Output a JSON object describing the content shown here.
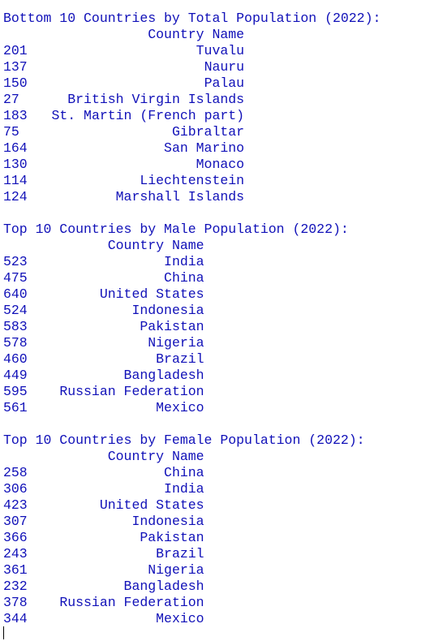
{
  "colors": {
    "background": "#ffffff",
    "text": "#1010b8",
    "cursor": "#000000"
  },
  "sections": [
    {
      "title": "Bottom 10 Countries by Total Population (2022):",
      "column_header": "Country Name",
      "index_width": 3,
      "value_width": 25,
      "rows": [
        {
          "index": "201",
          "value": "Tuvalu"
        },
        {
          "index": "137",
          "value": "Nauru"
        },
        {
          "index": "150",
          "value": "Palau"
        },
        {
          "index": "27",
          "value": "British Virgin Islands"
        },
        {
          "index": "183",
          "value": "St. Martin (French part)"
        },
        {
          "index": "75",
          "value": "Gibraltar"
        },
        {
          "index": "164",
          "value": "San Marino"
        },
        {
          "index": "130",
          "value": "Monaco"
        },
        {
          "index": "114",
          "value": "Liechtenstein"
        },
        {
          "index": "124",
          "value": "Marshall Islands"
        }
      ]
    },
    {
      "title": "Top 10 Countries by Male Population (2022):",
      "column_header": "Country Name",
      "index_width": 3,
      "value_width": 20,
      "rows": [
        {
          "index": "523",
          "value": "India"
        },
        {
          "index": "475",
          "value": "China"
        },
        {
          "index": "640",
          "value": "United States"
        },
        {
          "index": "524",
          "value": "Indonesia"
        },
        {
          "index": "583",
          "value": "Pakistan"
        },
        {
          "index": "578",
          "value": "Nigeria"
        },
        {
          "index": "460",
          "value": "Brazil"
        },
        {
          "index": "449",
          "value": "Bangladesh"
        },
        {
          "index": "595",
          "value": "Russian Federation"
        },
        {
          "index": "561",
          "value": "Mexico"
        }
      ]
    },
    {
      "title": "Top 10 Countries by Female Population (2022):",
      "column_header": "Country Name",
      "index_width": 3,
      "value_width": 20,
      "rows": [
        {
          "index": "258",
          "value": "China"
        },
        {
          "index": "306",
          "value": "India"
        },
        {
          "index": "423",
          "value": "United States"
        },
        {
          "index": "307",
          "value": "Indonesia"
        },
        {
          "index": "366",
          "value": "Pakistan"
        },
        {
          "index": "243",
          "value": "Brazil"
        },
        {
          "index": "361",
          "value": "Nigeria"
        },
        {
          "index": "232",
          "value": "Bangladesh"
        },
        {
          "index": "378",
          "value": "Russian Federation"
        },
        {
          "index": "344",
          "value": "Mexico"
        }
      ]
    }
  ]
}
